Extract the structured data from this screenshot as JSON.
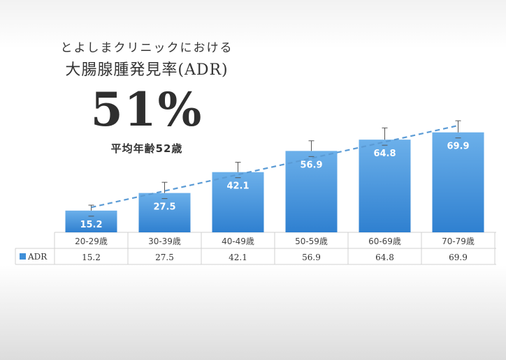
{
  "header": {
    "clinic": "とよしまクリニックにおける",
    "title": "大腸腺腫発見率(ADR)",
    "big_percent": "51%",
    "avg_age": "平均年齢52歳"
  },
  "chart_data": {
    "type": "bar",
    "categories": [
      "20-29歳",
      "30-39歳",
      "40-49歳",
      "50-59歳",
      "60-69歳",
      "70-79歳"
    ],
    "series": [
      {
        "name": "ADR",
        "values": [
          15.2,
          27.5,
          42.1,
          56.9,
          64.8,
          69.9
        ],
        "labels": [
          "15.2",
          "27.5",
          "42.1",
          "56.9",
          "64.8",
          "69.9"
        ]
      }
    ],
    "error_upper": [
      19.0,
      35.0,
      49.0,
      64.0,
      73.0,
      78.0
    ],
    "trendline": "linear",
    "ylim": [
      0,
      80
    ],
    "data_table": true,
    "colors": {
      "bar": "#3f8fd8",
      "bar_light": "#6cb0ea",
      "trend": "#5b9bd5",
      "error": "#555555",
      "grid": "#d0d0d0"
    }
  }
}
